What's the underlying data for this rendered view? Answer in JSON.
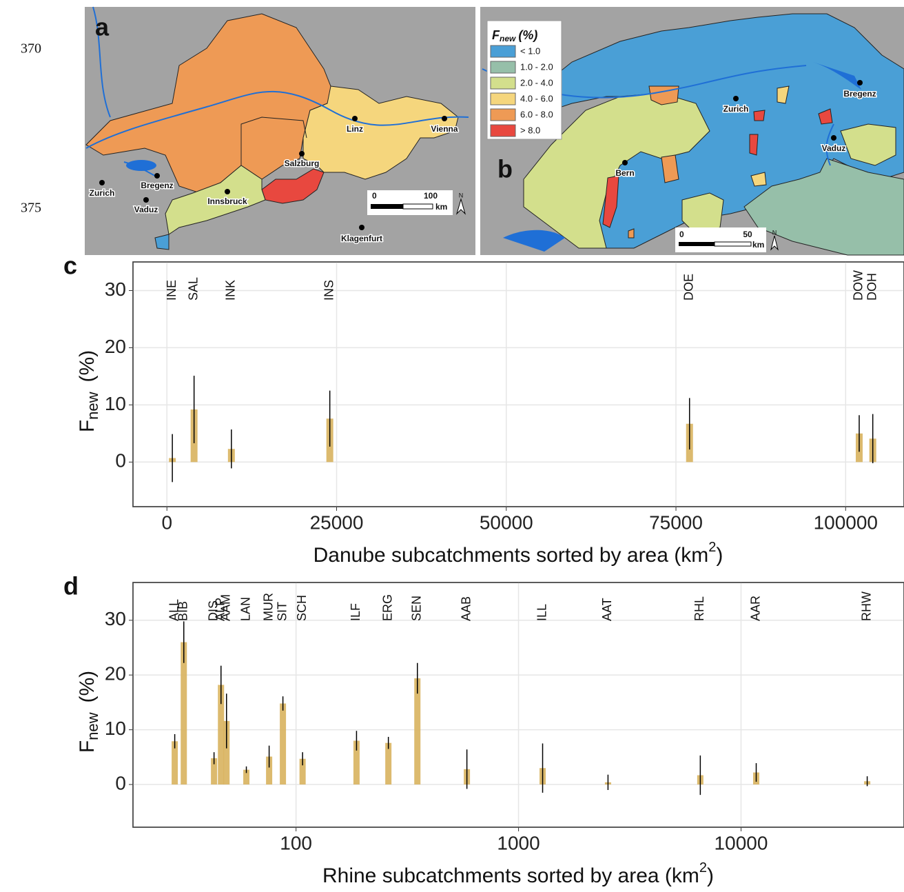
{
  "line_numbers": [
    "370",
    "375"
  ],
  "map_a": {
    "panel_label": "a",
    "cities": [
      "Zurich",
      "Bregenz",
      "Vaduz",
      "Innsbruck",
      "Salzburg",
      "Linz",
      "Vienna",
      "Klagenfurt"
    ],
    "scale": {
      "start": "0",
      "end": "100",
      "unit": "km"
    },
    "north": "N"
  },
  "map_b": {
    "panel_label": "b",
    "legend": {
      "title": {
        "symbol": "F",
        "subscript": "new",
        "unit": "(%)"
      },
      "items": [
        {
          "label": "< 1.0",
          "color": "#4a9fd6"
        },
        {
          "label": "1.0 - 2.0",
          "color": "#96bfa9"
        },
        {
          "label": "2.0 - 4.0",
          "color": "#d3df8c"
        },
        {
          "label": "4.0 - 6.0",
          "color": "#f5d67d"
        },
        {
          "label": "6.0 - 8.0",
          "color": "#ee9a55"
        },
        {
          "label": "> 8.0",
          "color": "#e8483f"
        }
      ]
    },
    "cities": [
      "Zurich",
      "Bregenz",
      "Vaduz",
      "Bern"
    ],
    "scale": {
      "start": "0",
      "end": "50",
      "unit": "km"
    },
    "north": "N"
  },
  "chart_data": [
    {
      "type": "bar",
      "panel_label": "c",
      "x_label": {
        "text": "Danube subcatchments sorted by area (km",
        "superscript": "2",
        "close": ")"
      },
      "y_label": {
        "symbol": "F",
        "subscript": "new",
        "unit": "(%)"
      },
      "labels": [
        "INE",
        "SAL",
        "INK",
        "INS",
        "DOE",
        "DOW",
        "DOH"
      ],
      "x": [
        800,
        4000,
        9500,
        24000,
        77000,
        102000,
        104000
      ],
      "values": [
        0.7,
        9.2,
        2.3,
        7.6,
        6.7,
        5.0,
        4.1
      ],
      "errors": [
        4.2,
        5.9,
        3.4,
        4.9,
        4.5,
        3.2,
        4.3
      ],
      "color": "#d8b25e",
      "log_x": false,
      "grid": true,
      "xlim": [
        -5000,
        108600
      ],
      "ylim": [
        -7.8,
        35
      ],
      "xticks": [
        0,
        25000,
        50000,
        75000,
        100000
      ],
      "yticks": [
        0,
        10,
        20,
        30
      ]
    },
    {
      "type": "bar",
      "panel_label": "d",
      "x_label": {
        "text": "Rhine subcatchments sorted by area (km",
        "superscript": "2",
        "close": ")"
      },
      "y_label": {
        "symbol": "F",
        "subscript": "new",
        "unit": "(%)"
      },
      "labels": [
        "ALL",
        "BIB",
        "DIS",
        "ALP",
        "AAM",
        "LAN",
        "MUR",
        "SIT",
        "SCH",
        "ILF",
        "ERG",
        "SEN",
        "AAB",
        "ILL",
        "AAT",
        "RHL",
        "AAR",
        "RHW"
      ],
      "x": [
        28.5,
        31.3,
        42.8,
        46,
        48.7,
        59.8,
        75.7,
        87.3,
        107,
        187,
        260,
        351,
        586,
        1283,
        2524,
        6560,
        11700,
        36900
      ],
      "values": [
        7.9,
        26,
        4.8,
        18.2,
        11.6,
        2.7,
        5.1,
        14.8,
        4.7,
        8,
        7.6,
        19.4,
        2.8,
        3,
        0.4,
        1.7,
        2.2,
        0.6
      ],
      "errors": [
        1.3,
        3.8,
        1.1,
        3.5,
        5,
        0.6,
        2,
        1.3,
        1.2,
        1.8,
        1.1,
        2.8,
        3.6,
        4.5,
        1.4,
        3.6,
        1.7,
        0.9
      ],
      "color": "#d8b25e",
      "log_x": true,
      "grid": true,
      "xlim": [
        18.5,
        54000
      ],
      "ylim": [
        -7.8,
        36.9
      ],
      "xticks": [
        100,
        1000,
        10000
      ],
      "yticks": [
        0,
        10,
        20,
        30
      ]
    }
  ]
}
